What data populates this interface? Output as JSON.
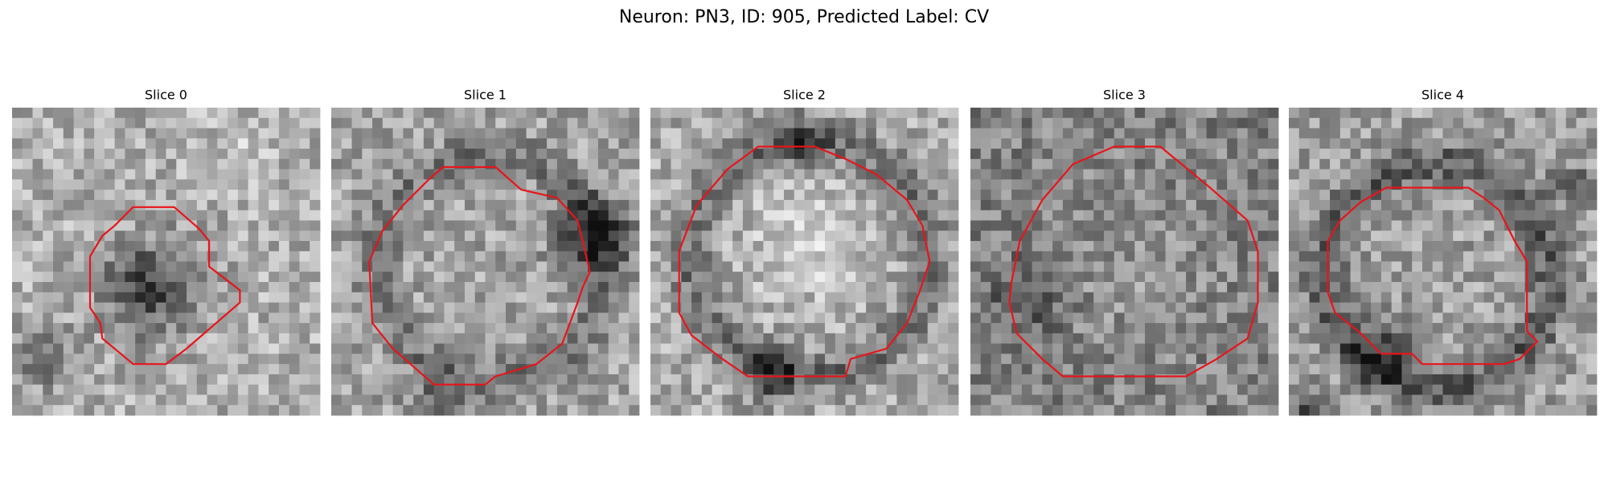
{
  "figure": {
    "title": "Neuron: PN3, ID: 905, Predicted Label: CV",
    "panels": [
      {
        "title": "Slice 0"
      },
      {
        "title": "Slice 1"
      },
      {
        "title": "Slice 2"
      },
      {
        "title": "Slice 3"
      },
      {
        "title": "Slice 4"
      }
    ]
  }
}
